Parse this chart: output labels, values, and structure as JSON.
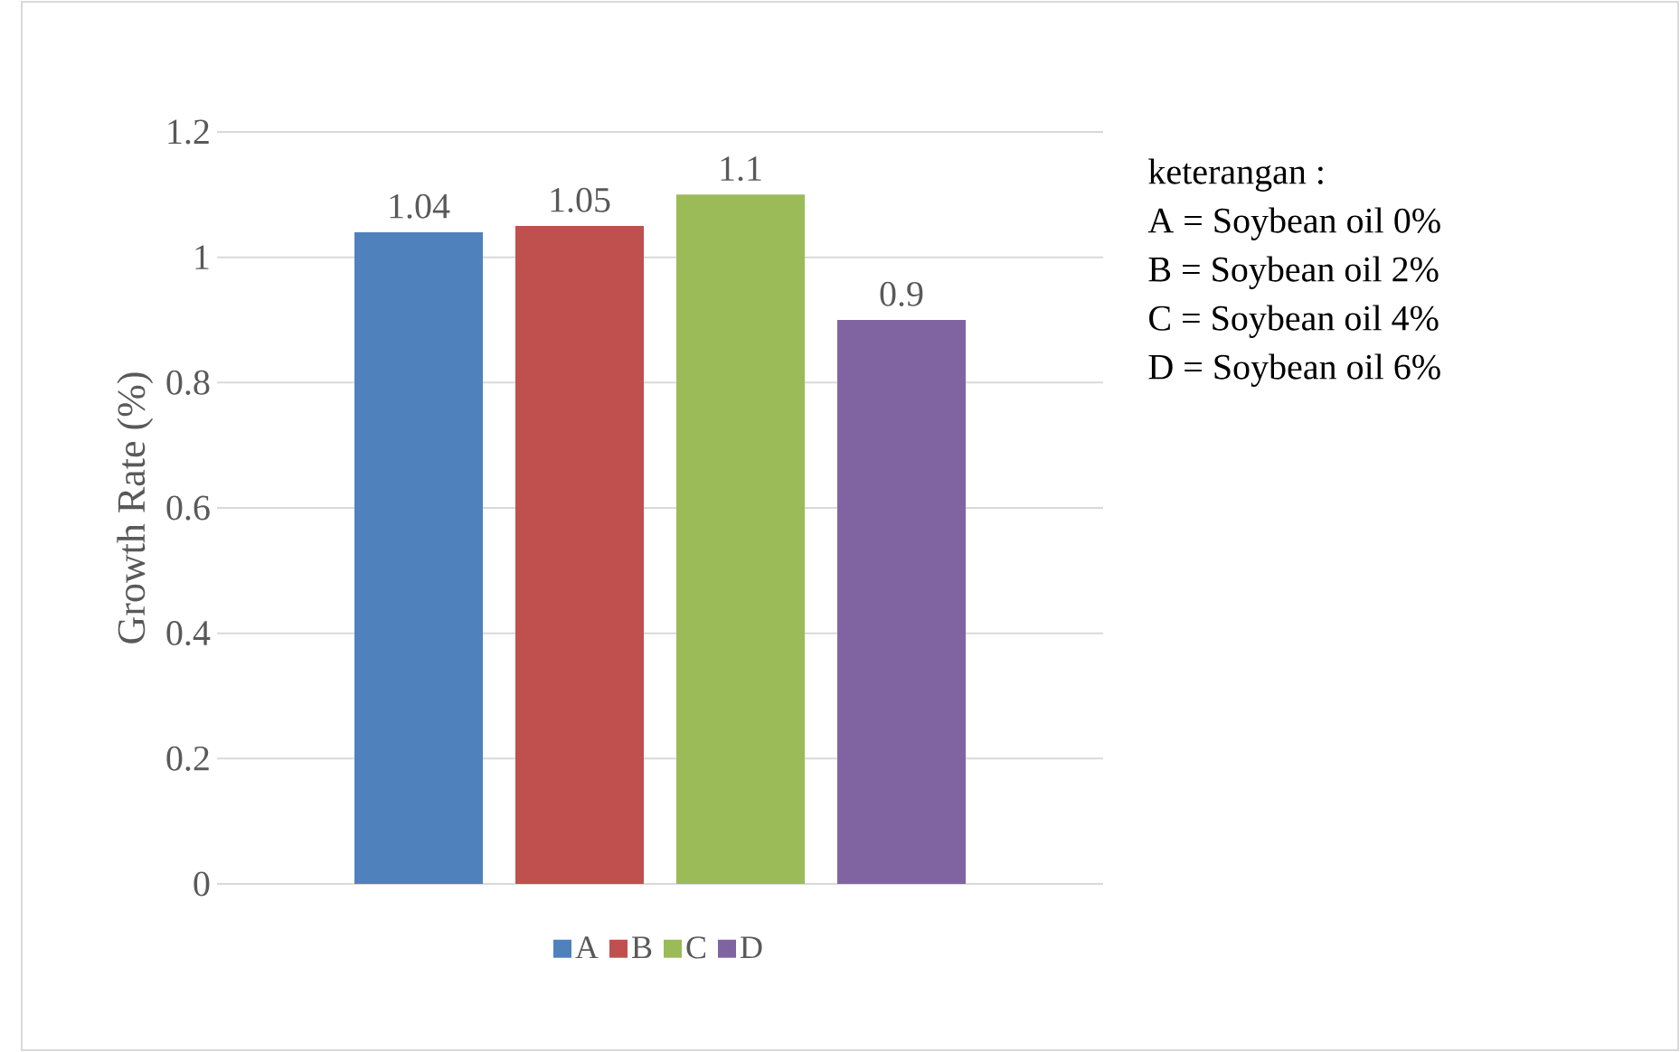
{
  "chart_data": {
    "type": "bar",
    "ylabel": "Growth Rate (%)",
    "categories": [
      null
    ],
    "series": [
      {
        "name": "A",
        "color": "#4f81bd",
        "values": [
          1.04
        ]
      },
      {
        "name": "B",
        "color": "#c0504d",
        "values": [
          1.05
        ]
      },
      {
        "name": "C",
        "color": "#9bbb59",
        "values": [
          1.1
        ]
      },
      {
        "name": "D",
        "color": "#8064a2",
        "values": [
          0.9
        ]
      }
    ],
    "ylim": [
      0,
      1.2
    ],
    "yticks": [
      0,
      0.2,
      0.4,
      0.6,
      0.8,
      1,
      1.2
    ],
    "grid": "y",
    "legend": "bottom",
    "data_labels": true,
    "annotations": [
      "keterangan :",
      "A = Soybean oil 0%",
      "B = Soybean oil 2%",
      "C = Soybean oil 4%",
      "D = Soybean oil 6%"
    ]
  }
}
